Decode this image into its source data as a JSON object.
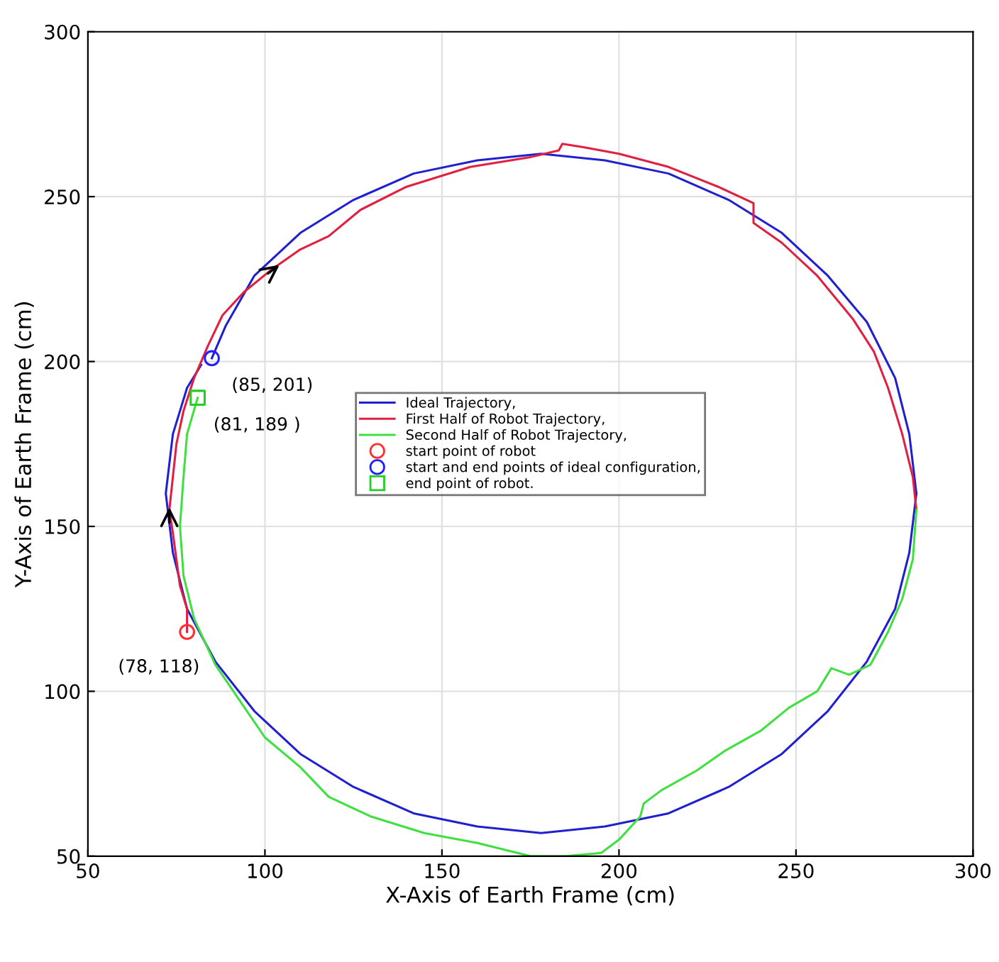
{
  "chart_data": {
    "type": "line",
    "xlabel": "X-Axis of Earth Frame (cm)",
    "ylabel": "Y-Axis of Earth Frame (cm)",
    "xlim": [
      50,
      300
    ],
    "ylim": [
      50,
      300
    ],
    "xticks": [
      50,
      100,
      150,
      200,
      250,
      300
    ],
    "yticks": [
      50,
      100,
      150,
      200,
      250,
      300
    ],
    "grid": true,
    "legend": "center",
    "series": [
      {
        "name": "Ideal Trajectory,",
        "color": "#2020d0",
        "x": [
          85,
          89,
          97,
          110,
          125,
          142,
          160,
          178,
          196,
          214,
          231,
          246,
          259,
          270,
          278,
          282,
          284,
          282,
          278,
          270,
          259,
          246,
          231,
          214,
          196,
          178,
          160,
          142,
          125,
          110,
          97,
          86,
          78,
          74,
          72,
          74,
          78,
          82
        ],
        "values": [
          201,
          211,
          226,
          239,
          249,
          257,
          261,
          263,
          261,
          257,
          249,
          239,
          226,
          212,
          195,
          178,
          160,
          142,
          125,
          109,
          94,
          81,
          71,
          63,
          59,
          57,
          59,
          63,
          71,
          81,
          94,
          109,
          125,
          142,
          160,
          178,
          192,
          199
        ]
      },
      {
        "name": "First Half of Robot Trajectory,",
        "color": "#e02040",
        "x": [
          78,
          78,
          76,
          75,
          74,
          73,
          74,
          75,
          77,
          80,
          84,
          88,
          94,
          102,
          110,
          118,
          127,
          140,
          158,
          175,
          183,
          184,
          190,
          200,
          214,
          228,
          238,
          238,
          246,
          256,
          266,
          272,
          276,
          280,
          283,
          284
        ],
        "values": [
          118,
          125,
          132,
          140,
          148,
          155,
          165,
          175,
          185,
          195,
          205,
          214,
          221,
          228,
          234,
          238,
          246,
          253,
          259,
          262,
          264,
          266,
          265,
          263,
          259,
          253,
          248,
          242,
          236,
          226,
          213,
          203,
          192,
          178,
          165,
          155
        ]
      },
      {
        "name": "Second Half of Robot Trajectory,",
        "color": "#40e040",
        "x": [
          284,
          283,
          280,
          276,
          271,
          265,
          260,
          256,
          248,
          240,
          230,
          222,
          212,
          207,
          206,
          200,
          195,
          185,
          175,
          160,
          145,
          130,
          118,
          110,
          100,
          93,
          86,
          80,
          77,
          76,
          77,
          78,
          81
        ],
        "values": [
          155,
          140,
          128,
          118,
          108,
          105,
          107,
          100,
          95,
          88,
          82,
          76,
          70,
          66,
          62,
          55,
          51,
          50,
          50,
          54,
          57,
          62,
          68,
          77,
          86,
          97,
          108,
          122,
          135,
          150,
          165,
          178,
          189
        ]
      },
      {
        "name": "start point of robot",
        "type": "scatter",
        "marker": "circle",
        "color": "#ff3030",
        "x": [
          78
        ],
        "values": [
          118
        ]
      },
      {
        "name": "start and end points of ideal configuration,",
        "type": "scatter",
        "marker": "circle",
        "color": "#2020ff",
        "x": [
          85
        ],
        "values": [
          201
        ]
      },
      {
        "name": "end point of robot.",
        "type": "scatter",
        "marker": "square",
        "color": "#20d020",
        "x": [
          81
        ],
        "values": [
          189
        ]
      }
    ],
    "annotations": [
      {
        "text": "(85, 201)",
        "x": 85,
        "y": 201
      },
      {
        "text": "(81, 189 )",
        "x": 81,
        "y": 189
      },
      {
        "text": "(78, 118)",
        "x": 78,
        "y": 118
      }
    ]
  }
}
